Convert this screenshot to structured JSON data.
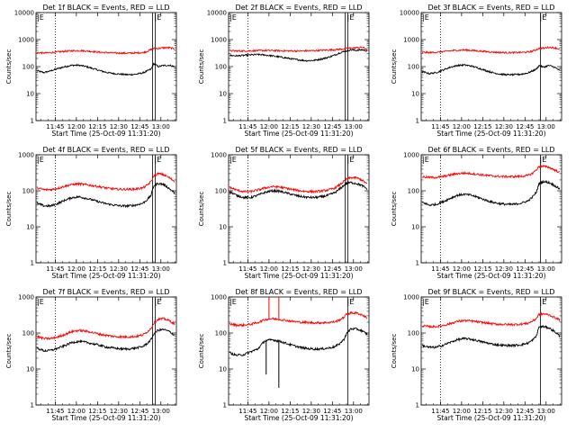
{
  "figure": {
    "ylabel": "Counts/sec",
    "xlabel": "Start Time (25-Oct-09 11:31:20)",
    "colors": {
      "events": "#000000",
      "lld": "#ff0000",
      "axes": "#000000",
      "background": "#ffffff"
    }
  },
  "chart_data": [
    {
      "type": "line",
      "title": "Det 1f BLACK = Events, RED = LLD",
      "yscale": "log",
      "ylim": [
        1,
        10000
      ],
      "yticks": [
        "1",
        "10",
        "100",
        "1000",
        "10000"
      ],
      "xlim": [
        "11:31:20",
        "13:11:00"
      ],
      "xticks": [
        "11:45",
        "12:00",
        "12:15",
        "12:30",
        "12:45",
        "13:00"
      ],
      "xlabel": "Start Time (25-Oct-09 11:31:20)",
      "ylabel": "Counts/sec",
      "grid": false,
      "markers": {
        "dotted_vertical": [
          "11:45"
        ],
        "solid_vertical": [
          "12:54",
          "12:56"
        ],
        "flag_text": "|E"
      },
      "x": [
        "11:32",
        "11:37",
        "11:42",
        "11:47",
        "11:52",
        "11:57",
        "12:02",
        "12:07",
        "12:12",
        "12:17",
        "12:22",
        "12:27",
        "12:32",
        "12:37",
        "12:42",
        "12:47",
        "12:50",
        "12:53",
        "12:55",
        "12:58",
        "13:02",
        "13:06",
        "13:10"
      ],
      "series": [
        {
          "name": "Events",
          "color": "#000000",
          "values": [
            70,
            60,
            70,
            85,
            100,
            112,
            112,
            100,
            84,
            70,
            60,
            55,
            52,
            50,
            52,
            58,
            68,
            80,
            130,
            100,
            110,
            112,
            100
          ]
        },
        {
          "name": "LLD",
          "color": "#ff0000",
          "values": [
            330,
            320,
            330,
            350,
            370,
            385,
            390,
            380,
            360,
            340,
            330,
            320,
            315,
            315,
            320,
            330,
            360,
            430,
            470,
            470,
            500,
            500,
            450
          ]
        }
      ]
    },
    {
      "type": "line",
      "title": "Det 2f BLACK = Events, RED = LLD",
      "yscale": "log",
      "ylim": [
        1,
        10000
      ],
      "yticks": [
        "1",
        "10",
        "100",
        "1000",
        "10000"
      ],
      "xlim": [
        "11:31:20",
        "13:11:00"
      ],
      "xticks": [
        "11:45",
        "12:00",
        "12:15",
        "12:30",
        "12:45",
        "13:00"
      ],
      "xlabel": "Start Time (25-Oct-09 11:31:20)",
      "ylabel": "Counts/sec",
      "grid": false,
      "markers": {
        "dotted_vertical": [
          "11:45"
        ],
        "solid_vertical": [
          "12:54",
          "12:56"
        ],
        "flag_text": "|E"
      },
      "x": [
        "11:32",
        "11:37",
        "11:42",
        "11:47",
        "11:52",
        "11:57",
        "12:02",
        "12:07",
        "12:12",
        "12:17",
        "12:22",
        "12:27",
        "12:32",
        "12:37",
        "12:42",
        "12:47",
        "12:50",
        "12:53",
        "12:55",
        "12:58",
        "13:02",
        "13:06",
        "13:10"
      ],
      "series": [
        {
          "name": "Events",
          "color": "#000000",
          "values": [
            260,
            250,
            260,
            270,
            280,
            270,
            250,
            230,
            210,
            190,
            175,
            165,
            170,
            190,
            220,
            270,
            320,
            360,
            380,
            420,
            400,
            420,
            380
          ]
        },
        {
          "name": "LLD",
          "color": "#ff0000",
          "values": [
            390,
            380,
            380,
            385,
            390,
            395,
            395,
            390,
            385,
            380,
            380,
            385,
            390,
            400,
            410,
            420,
            440,
            450,
            470,
            480,
            500,
            520,
            430
          ]
        }
      ]
    },
    {
      "type": "line",
      "title": "Det 3f BLACK = Events, RED = LLD",
      "yscale": "log",
      "ylim": [
        1,
        10000
      ],
      "yticks": [
        "1",
        "10",
        "100",
        "1000",
        "10000"
      ],
      "xlim": [
        "11:31:20",
        "13:11:00"
      ],
      "xticks": [
        "11:45",
        "12:00",
        "12:15",
        "12:30",
        "12:45",
        "13:00"
      ],
      "xlabel": "Start Time (25-Oct-09 11:31:20)",
      "ylabel": "Counts/sec",
      "grid": false,
      "markers": {
        "dotted_vertical": [
          "11:45"
        ],
        "solid_vertical": [
          "12:56"
        ],
        "flag_text": "|E"
      },
      "x": [
        "11:32",
        "11:37",
        "11:42",
        "11:47",
        "11:52",
        "11:57",
        "12:02",
        "12:07",
        "12:12",
        "12:17",
        "12:22",
        "12:27",
        "12:32",
        "12:37",
        "12:42",
        "12:47",
        "12:50",
        "12:53",
        "12:55",
        "12:58",
        "13:02",
        "13:06",
        "13:10"
      ],
      "series": [
        {
          "name": "Events",
          "color": "#000000",
          "values": [
            65,
            55,
            60,
            75,
            95,
            110,
            115,
            105,
            88,
            72,
            60,
            53,
            50,
            50,
            52,
            58,
            68,
            80,
            110,
            95,
            110,
            95,
            70
          ]
        },
        {
          "name": "LLD",
          "color": "#ff0000",
          "values": [
            340,
            330,
            340,
            360,
            385,
            400,
            410,
            400,
            380,
            360,
            345,
            335,
            330,
            330,
            335,
            345,
            370,
            420,
            470,
            480,
            520,
            500,
            440
          ]
        }
      ]
    },
    {
      "type": "line",
      "title": "Det 4f BLACK = Events, RED = LLD",
      "yscale": "log",
      "ylim": [
        1,
        1000
      ],
      "yticks": [
        "1",
        "10",
        "100",
        "1000"
      ],
      "xlim": [
        "11:31:20",
        "13:11:00"
      ],
      "xticks": [
        "11:45",
        "12:00",
        "12:15",
        "12:30",
        "12:45",
        "13:00"
      ],
      "xlabel": "Start Time (25-Oct-09 11:31:20)",
      "ylabel": "Counts/sec",
      "grid": false,
      "markers": {
        "dotted_vertical": [
          "11:45"
        ],
        "solid_vertical": [
          "12:54",
          "12:56"
        ],
        "flag_text": "|E"
      },
      "x": [
        "11:32",
        "11:37",
        "11:42",
        "11:47",
        "11:52",
        "11:57",
        "12:02",
        "12:07",
        "12:12",
        "12:17",
        "12:22",
        "12:27",
        "12:32",
        "12:37",
        "12:42",
        "12:47",
        "12:50",
        "12:53",
        "12:55",
        "12:58",
        "13:02",
        "13:06",
        "13:10"
      ],
      "series": [
        {
          "name": "Events",
          "color": "#000000",
          "values": [
            45,
            38,
            38,
            45,
            55,
            65,
            68,
            62,
            55,
            48,
            43,
            40,
            38,
            38,
            40,
            45,
            55,
            75,
            140,
            160,
            150,
            115,
            85
          ]
        },
        {
          "name": "LLD",
          "color": "#ff0000",
          "values": [
            120,
            108,
            108,
            118,
            135,
            150,
            155,
            148,
            138,
            128,
            118,
            112,
            110,
            110,
            112,
            120,
            140,
            180,
            260,
            300,
            280,
            230,
            180
          ]
        }
      ]
    },
    {
      "type": "line",
      "title": "Det 5f BLACK = Events, RED = LLD",
      "yscale": "log",
      "ylim": [
        1,
        1000
      ],
      "yticks": [
        "1",
        "10",
        "100",
        "1000"
      ],
      "xlim": [
        "11:31:20",
        "13:11:00"
      ],
      "xticks": [
        "11:45",
        "12:00",
        "12:15",
        "12:30",
        "12:45",
        "13:00"
      ],
      "xlabel": "Start Time (25-Oct-09 11:31:20)",
      "ylabel": "Counts/sec",
      "grid": false,
      "markers": {
        "dotted_vertical": [
          "11:45"
        ],
        "solid_vertical": [
          "12:54",
          "12:56"
        ],
        "flag_text": "|E"
      },
      "x": [
        "11:32",
        "11:37",
        "11:42",
        "11:47",
        "11:52",
        "11:57",
        "12:02",
        "12:07",
        "12:12",
        "12:17",
        "12:22",
        "12:27",
        "12:32",
        "12:37",
        "12:42",
        "12:47",
        "12:50",
        "12:53",
        "12:55",
        "12:58",
        "13:02",
        "13:06",
        "13:10"
      ],
      "series": [
        {
          "name": "Events",
          "color": "#000000",
          "values": [
            95,
            75,
            65,
            65,
            75,
            90,
            100,
            98,
            88,
            78,
            70,
            66,
            65,
            68,
            75,
            90,
            110,
            140,
            160,
            170,
            160,
            140,
            110
          ]
        },
        {
          "name": "LLD",
          "color": "#ff0000",
          "values": [
            125,
            105,
            95,
            95,
            105,
            120,
            130,
            128,
            118,
            108,
            100,
            96,
            95,
            98,
            105,
            120,
            145,
            180,
            210,
            230,
            230,
            200,
            150
          ]
        }
      ]
    },
    {
      "type": "line",
      "title": "Det 6f BLACK = Events, RED = LLD",
      "yscale": "log",
      "ylim": [
        1,
        1000
      ],
      "yticks": [
        "1",
        "10",
        "100",
        "1000"
      ],
      "xlim": [
        "11:31:20",
        "13:11:00"
      ],
      "xticks": [
        "11:45",
        "12:00",
        "12:15",
        "12:30",
        "12:45",
        "13:00"
      ],
      "xlabel": "Start Time (25-Oct-09 11:31:20)",
      "ylabel": "Counts/sec",
      "grid": false,
      "markers": {
        "dotted_vertical": [
          "11:45"
        ],
        "solid_vertical": [
          "12:56"
        ],
        "flag_text": "|E"
      },
      "x": [
        "11:32",
        "11:37",
        "11:42",
        "11:47",
        "11:52",
        "11:57",
        "12:02",
        "12:07",
        "12:12",
        "12:17",
        "12:22",
        "12:27",
        "12:32",
        "12:37",
        "12:42",
        "12:47",
        "12:50",
        "12:53",
        "12:55",
        "12:58",
        "13:02",
        "13:06",
        "13:10"
      ],
      "series": [
        {
          "name": "Events",
          "color": "#000000",
          "values": [
            48,
            40,
            42,
            50,
            62,
            75,
            80,
            75,
            65,
            55,
            48,
            44,
            42,
            42,
            45,
            52,
            65,
            90,
            160,
            180,
            170,
            140,
            110
          ]
        },
        {
          "name": "LLD",
          "color": "#ff0000",
          "values": [
            245,
            235,
            235,
            250,
            275,
            300,
            310,
            300,
            285,
            270,
            258,
            250,
            248,
            248,
            252,
            265,
            300,
            380,
            470,
            480,
            450,
            380,
            320
          ]
        }
      ]
    },
    {
      "type": "line",
      "title": "Det 7f BLACK = Events, RED = LLD",
      "yscale": "log",
      "ylim": [
        1,
        1000
      ],
      "yticks": [
        "1",
        "10",
        "100",
        "1000"
      ],
      "xlim": [
        "11:31:20",
        "13:11:00"
      ],
      "xticks": [
        "11:45",
        "12:00",
        "12:15",
        "12:30",
        "12:45",
        "13:00"
      ],
      "xlabel": "Start Time (25-Oct-09 11:31:20)",
      "ylabel": "Counts/sec",
      "grid": false,
      "markers": {
        "dotted_vertical": [
          "11:45"
        ],
        "solid_vertical": [
          "12:54",
          "12:56"
        ],
        "flag_text": "|E"
      },
      "x": [
        "11:32",
        "11:37",
        "11:42",
        "11:47",
        "11:52",
        "11:57",
        "12:02",
        "12:07",
        "12:12",
        "12:17",
        "12:22",
        "12:27",
        "12:32",
        "12:37",
        "12:42",
        "12:47",
        "12:50",
        "12:53",
        "12:55",
        "12:58",
        "13:02",
        "13:06",
        "13:10"
      ],
      "series": [
        {
          "name": "Events",
          "color": "#000000",
          "values": [
            38,
            32,
            33,
            38,
            45,
            55,
            58,
            55,
            50,
            45,
            40,
            38,
            36,
            36,
            38,
            42,
            50,
            65,
            95,
            120,
            125,
            110,
            85
          ]
        },
        {
          "name": "LLD",
          "color": "#ff0000",
          "values": [
            80,
            70,
            70,
            78,
            92,
            110,
            118,
            112,
            102,
            92,
            85,
            80,
            78,
            78,
            80,
            88,
            105,
            135,
            190,
            240,
            250,
            220,
            175
          ]
        }
      ]
    },
    {
      "type": "line",
      "title": "Det 8f BLACK = Events, RED = LLD",
      "yscale": "log",
      "ylim": [
        1,
        1000
      ],
      "yticks": [
        "1",
        "10",
        "100",
        "1000"
      ],
      "xlim": [
        "11:31:20",
        "13:11:00"
      ],
      "xticks": [
        "11:45",
        "12:00",
        "12:15",
        "12:30",
        "12:45",
        "13:00"
      ],
      "xlabel": "Start Time (25-Oct-09 11:31:20)",
      "ylabel": "Counts/sec",
      "grid": false,
      "markers": {
        "dotted_vertical": [
          "11:45"
        ],
        "solid_vertical": [
          "12:56"
        ],
        "flag_text": "|E"
      },
      "x": [
        "11:32",
        "11:37",
        "11:42",
        "11:47",
        "11:52",
        "11:57",
        "12:02",
        "12:07",
        "12:12",
        "12:17",
        "12:22",
        "12:27",
        "12:32",
        "12:37",
        "12:42",
        "12:47",
        "12:50",
        "12:53",
        "12:55",
        "12:58",
        "13:02",
        "13:06",
        "13:10"
      ],
      "series": [
        {
          "name": "Events",
          "color": "#000000",
          "values": [
            28,
            24,
            25,
            30,
            36,
            60,
            65,
            60,
            52,
            45,
            40,
            37,
            36,
            36,
            38,
            42,
            50,
            65,
            95,
            130,
            130,
            115,
            90
          ]
        },
        {
          "name": "LLD",
          "color": "#ff0000",
          "values": [
            180,
            165,
            165,
            175,
            195,
            235,
            250,
            240,
            225,
            210,
            200,
            195,
            192,
            192,
            196,
            205,
            230,
            270,
            330,
            360,
            360,
            320,
            260
          ]
        }
      ],
      "spikes": [
        {
          "series": "LLD",
          "x": "12:00",
          "value": 1000
        },
        {
          "series": "LLD",
          "x": "12:07",
          "value": 1000
        },
        {
          "series": "Events",
          "x": "12:07",
          "value": 3
        },
        {
          "series": "Events",
          "x": "11:58",
          "value": 7
        }
      ]
    },
    {
      "type": "line",
      "title": "Det 9f BLACK = Events, RED = LLD",
      "yscale": "log",
      "ylim": [
        1,
        1000
      ],
      "yticks": [
        "1",
        "10",
        "100",
        "1000"
      ],
      "xlim": [
        "11:31:20",
        "13:11:00"
      ],
      "xticks": [
        "11:45",
        "12:00",
        "12:15",
        "12:30",
        "12:45",
        "13:00"
      ],
      "xlabel": "Start Time (25-Oct-09 11:31:20)",
      "ylabel": "Counts/sec",
      "grid": false,
      "markers": {
        "dotted_vertical": [
          "11:45"
        ],
        "solid_vertical": [
          "12:56"
        ],
        "flag_text": "|E"
      },
      "x": [
        "11:32",
        "11:37",
        "11:42",
        "11:47",
        "11:52",
        "11:57",
        "12:02",
        "12:07",
        "12:12",
        "12:17",
        "12:22",
        "12:27",
        "12:32",
        "12:37",
        "12:42",
        "12:47",
        "12:50",
        "12:53",
        "12:55",
        "12:58",
        "13:02",
        "13:06",
        "13:10"
      ],
      "series": [
        {
          "name": "Events",
          "color": "#000000",
          "values": [
            45,
            40,
            40,
            46,
            55,
            65,
            70,
            67,
            60,
            54,
            49,
            46,
            45,
            45,
            47,
            52,
            62,
            80,
            150,
            150,
            140,
            110,
            80
          ]
        },
        {
          "name": "LLD",
          "color": "#ff0000",
          "values": [
            160,
            150,
            150,
            162,
            182,
            210,
            222,
            215,
            202,
            190,
            180,
            175,
            172,
            172,
            176,
            186,
            210,
            250,
            330,
            340,
            320,
            270,
            230
          ]
        }
      ]
    }
  ]
}
